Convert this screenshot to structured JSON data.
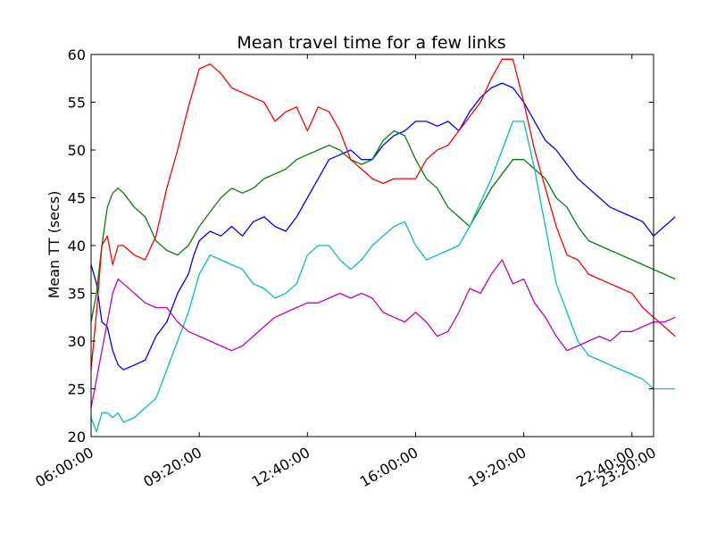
{
  "chart_data": {
    "type": "line",
    "title": "Mean travel time for a few links",
    "xlabel": "",
    "ylabel": "Mean TT (secs)",
    "xlim": [
      "06:00:00",
      "23:20:00"
    ],
    "ylim": [
      20,
      60
    ],
    "x_ticks": [
      "06:00:00",
      "09:20:00",
      "12:40:00",
      "16:00:00",
      "19:20:00",
      "22:40:00",
      "23:20:00"
    ],
    "y_ticks": [
      20,
      25,
      30,
      35,
      40,
      45,
      50,
      55,
      60
    ],
    "grid": false,
    "legend": "none",
    "x_tick_rotation_deg": -30,
    "series": [
      {
        "color": "#0000ff",
        "points": [
          [
            "06:00:00",
            38
          ],
          [
            "06:10:00",
            36
          ],
          [
            "06:20:00",
            32
          ],
          [
            "06:30:00",
            31.5
          ],
          [
            "06:40:00",
            29
          ],
          [
            "06:50:00",
            27.5
          ],
          [
            "07:00:00",
            27
          ],
          [
            "07:20:00",
            27.5
          ],
          [
            "07:40:00",
            28
          ],
          [
            "08:00:00",
            30.5
          ],
          [
            "08:20:00",
            32
          ],
          [
            "08:40:00",
            35
          ],
          [
            "09:00:00",
            37
          ],
          [
            "09:10:00",
            39
          ],
          [
            "09:20:00",
            40.5
          ],
          [
            "09:40:00",
            41.5
          ],
          [
            "10:00:00",
            41
          ],
          [
            "10:20:00",
            42
          ],
          [
            "10:40:00",
            41
          ],
          [
            "11:00:00",
            42.5
          ],
          [
            "11:20:00",
            43
          ],
          [
            "11:40:00",
            42
          ],
          [
            "12:00:00",
            41.5
          ],
          [
            "12:20:00",
            43
          ],
          [
            "12:40:00",
            45
          ],
          [
            "13:00:00",
            47
          ],
          [
            "13:20:00",
            49
          ],
          [
            "13:40:00",
            49.5
          ],
          [
            "14:00:00",
            50
          ],
          [
            "14:20:00",
            49
          ],
          [
            "14:40:00",
            49
          ],
          [
            "15:00:00",
            50.5
          ],
          [
            "15:20:00",
            51.5
          ],
          [
            "15:40:00",
            52
          ],
          [
            "16:00:00",
            53
          ],
          [
            "16:20:00",
            53
          ],
          [
            "16:40:00",
            52.5
          ],
          [
            "17:00:00",
            53
          ],
          [
            "17:20:00",
            52
          ],
          [
            "17:40:00",
            54
          ],
          [
            "18:00:00",
            55.5
          ],
          [
            "18:20:00",
            56.5
          ],
          [
            "18:40:00",
            57
          ],
          [
            "19:00:00",
            56.5
          ],
          [
            "19:20:00",
            55
          ],
          [
            "19:40:00",
            53
          ],
          [
            "20:00:00",
            51
          ],
          [
            "20:20:00",
            50
          ],
          [
            "20:40:00",
            48.5
          ],
          [
            "21:00:00",
            47
          ],
          [
            "21:20:00",
            46
          ],
          [
            "21:40:00",
            45
          ],
          [
            "22:00:00",
            44
          ],
          [
            "22:20:00",
            43.5
          ],
          [
            "22:40:00",
            43
          ],
          [
            "23:00:00",
            42.5
          ],
          [
            "23:20:00",
            41
          ],
          [
            "23:40:00",
            42
          ],
          [
            "00:00:00",
            43
          ]
        ]
      },
      {
        "color": "#008000",
        "points": [
          [
            "06:00:00",
            32
          ],
          [
            "06:10:00",
            35
          ],
          [
            "06:20:00",
            40
          ],
          [
            "06:30:00",
            44
          ],
          [
            "06:40:00",
            45.5
          ],
          [
            "06:50:00",
            46
          ],
          [
            "07:00:00",
            45.5
          ],
          [
            "07:20:00",
            44
          ],
          [
            "07:40:00",
            43
          ],
          [
            "08:00:00",
            40.5
          ],
          [
            "08:20:00",
            39.5
          ],
          [
            "08:40:00",
            39
          ],
          [
            "09:00:00",
            40
          ],
          [
            "09:20:00",
            42
          ],
          [
            "09:40:00",
            43.5
          ],
          [
            "10:00:00",
            45
          ],
          [
            "10:20:00",
            46
          ],
          [
            "10:40:00",
            45.5
          ],
          [
            "11:00:00",
            46
          ],
          [
            "11:20:00",
            47
          ],
          [
            "11:40:00",
            47.5
          ],
          [
            "12:00:00",
            48
          ],
          [
            "12:20:00",
            49
          ],
          [
            "12:40:00",
            49.5
          ],
          [
            "13:00:00",
            50
          ],
          [
            "13:20:00",
            50.5
          ],
          [
            "13:40:00",
            50
          ],
          [
            "14:00:00",
            49
          ],
          [
            "14:20:00",
            48.5
          ],
          [
            "14:40:00",
            49
          ],
          [
            "15:00:00",
            51
          ],
          [
            "15:20:00",
            52
          ],
          [
            "15:40:00",
            51.5
          ],
          [
            "16:00:00",
            49
          ],
          [
            "16:20:00",
            47
          ],
          [
            "16:40:00",
            46
          ],
          [
            "17:00:00",
            44
          ],
          [
            "17:20:00",
            43
          ],
          [
            "17:40:00",
            42
          ],
          [
            "18:00:00",
            44
          ],
          [
            "18:20:00",
            46
          ],
          [
            "18:40:00",
            47.5
          ],
          [
            "19:00:00",
            49
          ],
          [
            "19:20:00",
            49
          ],
          [
            "19:40:00",
            48
          ],
          [
            "20:00:00",
            47
          ],
          [
            "20:20:00",
            45
          ],
          [
            "20:40:00",
            44
          ],
          [
            "21:00:00",
            42
          ],
          [
            "21:20:00",
            40.5
          ],
          [
            "21:40:00",
            40
          ],
          [
            "22:00:00",
            39.5
          ],
          [
            "22:20:00",
            39
          ],
          [
            "22:40:00",
            38.5
          ],
          [
            "23:00:00",
            38
          ],
          [
            "23:20:00",
            37.5
          ],
          [
            "23:40:00",
            37
          ],
          [
            "00:00:00",
            36.5
          ]
        ]
      },
      {
        "color": "#ff0000",
        "points": [
          [
            "06:00:00",
            27
          ],
          [
            "06:10:00",
            33
          ],
          [
            "06:20:00",
            40
          ],
          [
            "06:30:00",
            41
          ],
          [
            "06:40:00",
            38
          ],
          [
            "06:50:00",
            40
          ],
          [
            "07:00:00",
            40
          ],
          [
            "07:20:00",
            39
          ],
          [
            "07:40:00",
            38.5
          ],
          [
            "08:00:00",
            41
          ],
          [
            "08:20:00",
            46
          ],
          [
            "08:40:00",
            50
          ],
          [
            "09:00:00",
            54.5
          ],
          [
            "09:20:00",
            58.5
          ],
          [
            "09:40:00",
            59
          ],
          [
            "10:00:00",
            58
          ],
          [
            "10:20:00",
            56.5
          ],
          [
            "10:40:00",
            56
          ],
          [
            "11:00:00",
            55.5
          ],
          [
            "11:20:00",
            55
          ],
          [
            "11:40:00",
            53
          ],
          [
            "12:00:00",
            54
          ],
          [
            "12:20:00",
            54.5
          ],
          [
            "12:40:00",
            52
          ],
          [
            "13:00:00",
            54.5
          ],
          [
            "13:20:00",
            54
          ],
          [
            "13:40:00",
            52
          ],
          [
            "14:00:00",
            49
          ],
          [
            "14:20:00",
            48
          ],
          [
            "14:40:00",
            47
          ],
          [
            "15:00:00",
            46.5
          ],
          [
            "15:20:00",
            47
          ],
          [
            "15:40:00",
            47
          ],
          [
            "16:00:00",
            47
          ],
          [
            "16:20:00",
            49
          ],
          [
            "16:40:00",
            50
          ],
          [
            "17:00:00",
            50.5
          ],
          [
            "17:20:00",
            52
          ],
          [
            "17:40:00",
            53.5
          ],
          [
            "18:00:00",
            55
          ],
          [
            "18:20:00",
            57.5
          ],
          [
            "18:40:00",
            59.5
          ],
          [
            "19:00:00",
            59.5
          ],
          [
            "19:20:00",
            55
          ],
          [
            "19:40:00",
            50
          ],
          [
            "20:00:00",
            46
          ],
          [
            "20:20:00",
            42
          ],
          [
            "20:40:00",
            39
          ],
          [
            "21:00:00",
            38.5
          ],
          [
            "21:20:00",
            37
          ],
          [
            "21:40:00",
            36.5
          ],
          [
            "22:00:00",
            36
          ],
          [
            "22:20:00",
            35.5
          ],
          [
            "22:40:00",
            35
          ],
          [
            "23:00:00",
            33.5
          ],
          [
            "23:20:00",
            32.5
          ],
          [
            "23:40:00",
            31.5
          ],
          [
            "00:00:00",
            30.5
          ]
        ]
      },
      {
        "color": "#00bfbf",
        "points": [
          [
            "06:00:00",
            22
          ],
          [
            "06:10:00",
            20.5
          ],
          [
            "06:20:00",
            22.5
          ],
          [
            "06:30:00",
            22.5
          ],
          [
            "06:40:00",
            22
          ],
          [
            "06:50:00",
            22.5
          ],
          [
            "07:00:00",
            21.5
          ],
          [
            "07:20:00",
            22
          ],
          [
            "07:40:00",
            23
          ],
          [
            "08:00:00",
            24
          ],
          [
            "08:20:00",
            27
          ],
          [
            "08:40:00",
            30
          ],
          [
            "09:00:00",
            33
          ],
          [
            "09:20:00",
            37
          ],
          [
            "09:40:00",
            39
          ],
          [
            "10:00:00",
            38.5
          ],
          [
            "10:20:00",
            38
          ],
          [
            "10:40:00",
            37.5
          ],
          [
            "11:00:00",
            36
          ],
          [
            "11:20:00",
            35.5
          ],
          [
            "11:40:00",
            34.5
          ],
          [
            "12:00:00",
            35
          ],
          [
            "12:20:00",
            36
          ],
          [
            "12:40:00",
            39
          ],
          [
            "13:00:00",
            40
          ],
          [
            "13:20:00",
            40
          ],
          [
            "13:40:00",
            38.5
          ],
          [
            "14:00:00",
            37.5
          ],
          [
            "14:20:00",
            38.5
          ],
          [
            "14:40:00",
            40
          ],
          [
            "15:00:00",
            41
          ],
          [
            "15:20:00",
            42
          ],
          [
            "15:40:00",
            42.5
          ],
          [
            "16:00:00",
            40
          ],
          [
            "16:20:00",
            38.5
          ],
          [
            "16:40:00",
            39
          ],
          [
            "17:00:00",
            39.5
          ],
          [
            "17:20:00",
            40
          ],
          [
            "17:40:00",
            42
          ],
          [
            "18:00:00",
            44.5
          ],
          [
            "18:20:00",
            47
          ],
          [
            "18:40:00",
            50
          ],
          [
            "19:00:00",
            53
          ],
          [
            "19:20:00",
            53
          ],
          [
            "19:40:00",
            48
          ],
          [
            "20:00:00",
            42
          ],
          [
            "20:20:00",
            36
          ],
          [
            "20:40:00",
            33
          ],
          [
            "21:00:00",
            30
          ],
          [
            "21:20:00",
            28.5
          ],
          [
            "21:40:00",
            28
          ],
          [
            "22:00:00",
            27.5
          ],
          [
            "22:20:00",
            27
          ],
          [
            "22:40:00",
            26.5
          ],
          [
            "23:00:00",
            26
          ],
          [
            "23:20:00",
            25
          ],
          [
            "23:40:00",
            25
          ],
          [
            "00:00:00",
            25
          ]
        ]
      },
      {
        "color": "#bf00bf",
        "points": [
          [
            "06:00:00",
            23
          ],
          [
            "06:10:00",
            26
          ],
          [
            "06:20:00",
            29
          ],
          [
            "06:30:00",
            32
          ],
          [
            "06:40:00",
            35
          ],
          [
            "06:50:00",
            36.5
          ],
          [
            "07:00:00",
            36
          ],
          [
            "07:20:00",
            35
          ],
          [
            "07:40:00",
            34
          ],
          [
            "08:00:00",
            33.5
          ],
          [
            "08:20:00",
            33.5
          ],
          [
            "08:40:00",
            32
          ],
          [
            "09:00:00",
            31
          ],
          [
            "09:20:00",
            30.5
          ],
          [
            "09:40:00",
            30
          ],
          [
            "10:00:00",
            29.5
          ],
          [
            "10:20:00",
            29
          ],
          [
            "10:40:00",
            29.5
          ],
          [
            "11:00:00",
            30.5
          ],
          [
            "11:20:00",
            31.5
          ],
          [
            "11:40:00",
            32.5
          ],
          [
            "12:00:00",
            33
          ],
          [
            "12:20:00",
            33.5
          ],
          [
            "12:40:00",
            34
          ],
          [
            "13:00:00",
            34
          ],
          [
            "13:20:00",
            34.5
          ],
          [
            "13:40:00",
            35
          ],
          [
            "14:00:00",
            34.5
          ],
          [
            "14:20:00",
            35
          ],
          [
            "14:40:00",
            34.5
          ],
          [
            "15:00:00",
            33
          ],
          [
            "15:20:00",
            32.5
          ],
          [
            "15:40:00",
            32
          ],
          [
            "16:00:00",
            33
          ],
          [
            "16:20:00",
            32
          ],
          [
            "16:40:00",
            30.5
          ],
          [
            "17:00:00",
            31
          ],
          [
            "17:20:00",
            33
          ],
          [
            "17:40:00",
            35.5
          ],
          [
            "18:00:00",
            35
          ],
          [
            "18:20:00",
            37
          ],
          [
            "18:40:00",
            38.5
          ],
          [
            "19:00:00",
            36
          ],
          [
            "19:20:00",
            36.5
          ],
          [
            "19:40:00",
            34
          ],
          [
            "20:00:00",
            32.5
          ],
          [
            "20:20:00",
            30.5
          ],
          [
            "20:40:00",
            29
          ],
          [
            "21:00:00",
            29.5
          ],
          [
            "21:20:00",
            30
          ],
          [
            "21:40:00",
            30.5
          ],
          [
            "22:00:00",
            30
          ],
          [
            "22:20:00",
            31
          ],
          [
            "22:40:00",
            31
          ],
          [
            "23:00:00",
            31.5
          ],
          [
            "23:20:00",
            32
          ],
          [
            "23:40:00",
            32
          ],
          [
            "00:00:00",
            32.5
          ]
        ]
      }
    ]
  }
}
